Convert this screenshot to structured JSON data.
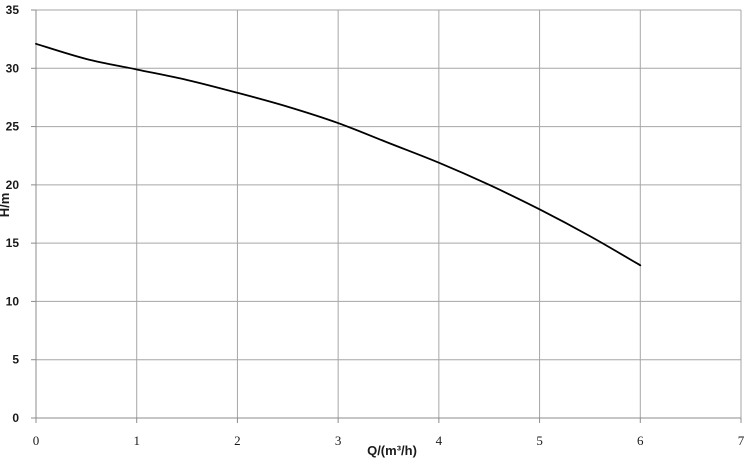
{
  "chart_data": {
    "type": "line",
    "xlabel": "Q/(m³/h)",
    "ylabel": "H/m",
    "xlim": [
      0,
      7
    ],
    "ylim": [
      0,
      35
    ],
    "x_ticks": [
      "0",
      "1",
      "2",
      "3",
      "4",
      "5",
      "6",
      "7"
    ],
    "y_ticks": [
      "0",
      "5",
      "10",
      "15",
      "20",
      "25",
      "30",
      "35"
    ],
    "grid": true,
    "series": [
      {
        "color": "#000000",
        "x": [
          0,
          0.5,
          1,
          1.5,
          2,
          2.5,
          3,
          3.5,
          4,
          4.5,
          5,
          5.5,
          6
        ],
        "y": [
          32.1,
          30.8,
          29.9,
          29.0,
          27.9,
          26.7,
          25.3,
          23.6,
          21.9,
          20.0,
          17.9,
          15.6,
          13.1
        ]
      }
    ]
  }
}
